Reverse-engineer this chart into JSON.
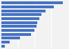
{
  "values": [
    100,
    85,
    72,
    65,
    62,
    59,
    57,
    54,
    48,
    30,
    14,
    6
  ],
  "bar_color": "#4472c4",
  "background_color": "#f2f2f2",
  "grid_color": "#ffffff",
  "n_bars": 12
}
